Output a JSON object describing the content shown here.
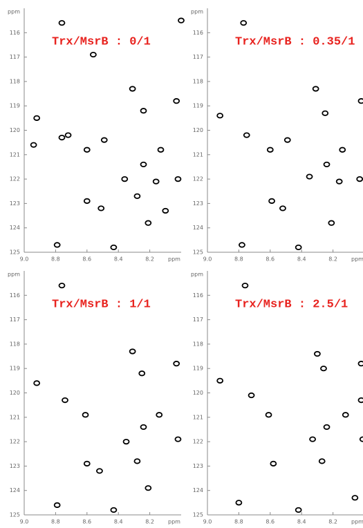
{
  "chart_data": [
    {
      "type": "scatter",
      "title": "Trx/MsrB : 0/1",
      "xlabel": "ppm",
      "ylabel": "ppm",
      "color": "#000000",
      "xlim": [
        9.0,
        8.0
      ],
      "ylim": [
        125,
        115
      ],
      "xticks": [
        {
          "value": 9.0,
          "label": "9.0"
        },
        8.8,
        8.6,
        8.4,
        8.2
      ],
      "yticks": [
        116,
        117,
        118,
        119,
        120,
        121,
        122,
        123,
        124,
        125
      ],
      "x": [
        8.76,
        8.56,
        8.31,
        8.03,
        8.24,
        8.92,
        8.76,
        8.72,
        8.94,
        8.49,
        8.6,
        8.13,
        8.24,
        8.36,
        8.16,
        8.02,
        8.6,
        8.51,
        8.21,
        8.79,
        8.43,
        8.28,
        8.1,
        8.0
      ],
      "y": [
        115.6,
        116.9,
        118.3,
        118.8,
        119.2,
        119.5,
        120.3,
        120.2,
        120.6,
        120.4,
        120.8,
        120.8,
        121.4,
        122.0,
        122.1,
        122.0,
        122.9,
        123.2,
        123.8,
        124.7,
        124.8,
        122.7,
        123.3,
        115.5
      ]
    },
    {
      "type": "scatter",
      "title": "Trx/MsrB : 0.35/1",
      "xlabel": "ppm",
      "ylabel": "ppm",
      "color": "#000000",
      "xlim": [
        9.0,
        8.0
      ],
      "ylim": [
        125,
        115
      ],
      "xticks": [
        {
          "value": 9.0,
          "label": "9.0"
        },
        8.8,
        8.6,
        8.4,
        8.2
      ],
      "yticks": [
        116,
        117,
        118,
        119,
        120,
        121,
        122,
        123,
        124,
        125
      ],
      "x": [
        8.77,
        8.31,
        8.25,
        8.02,
        8.92,
        8.75,
        8.49,
        8.6,
        8.14,
        8.35,
        8.16,
        8.03,
        8.59,
        8.52,
        8.21,
        8.78,
        8.42,
        8.24
      ],
      "y": [
        115.6,
        118.3,
        119.3,
        118.8,
        119.4,
        120.2,
        120.4,
        120.8,
        120.8,
        121.9,
        122.1,
        122.0,
        122.9,
        123.2,
        123.8,
        124.7,
        124.8,
        121.4
      ]
    },
    {
      "type": "scatter",
      "title": "Trx/MsrB : 1/1",
      "xlabel": "ppm",
      "ylabel": "ppm",
      "color": "#000000",
      "xlim": [
        9.0,
        8.0
      ],
      "ylim": [
        125,
        115
      ],
      "xticks": [
        {
          "value": 9.0,
          "label": "9.0"
        },
        8.8,
        8.6,
        8.4,
        8.2
      ],
      "yticks": [
        116,
        117,
        118,
        119,
        120,
        121,
        122,
        123,
        124,
        125
      ],
      "x": [
        8.76,
        8.31,
        8.25,
        8.03,
        8.92,
        8.74,
        8.61,
        8.35,
        8.14,
        8.02,
        8.6,
        8.52,
        8.21,
        8.79,
        8.43,
        8.24,
        8.28
      ],
      "y": [
        115.6,
        118.3,
        119.2,
        118.8,
        119.6,
        120.3,
        120.9,
        122.0,
        120.9,
        121.9,
        122.9,
        123.2,
        123.9,
        124.6,
        124.8,
        121.4,
        122.8
      ]
    },
    {
      "type": "scatter",
      "title": "Trx/MsrB : 2.5/1",
      "xlabel": "ppm",
      "ylabel": "ppm",
      "color": "#000000",
      "xlim": [
        9.0,
        8.0
      ],
      "ylim": [
        125,
        115
      ],
      "xticks": [
        {
          "value": 9.0,
          "label": "9.0"
        },
        8.8,
        8.6,
        8.4,
        8.2
      ],
      "yticks": [
        116,
        117,
        118,
        119,
        120,
        121,
        122,
        123,
        124,
        125
      ],
      "x": [
        8.76,
        8.3,
        8.26,
        8.02,
        8.92,
        8.72,
        8.61,
        8.02,
        8.12,
        8.24,
        8.33,
        8.01,
        8.58,
        8.27,
        8.8,
        8.42,
        8.06
      ],
      "y": [
        115.6,
        118.4,
        119.0,
        118.8,
        119.5,
        120.1,
        120.9,
        120.3,
        120.9,
        121.4,
        121.9,
        121.9,
        122.9,
        122.8,
        124.5,
        124.8,
        124.3
      ]
    }
  ]
}
